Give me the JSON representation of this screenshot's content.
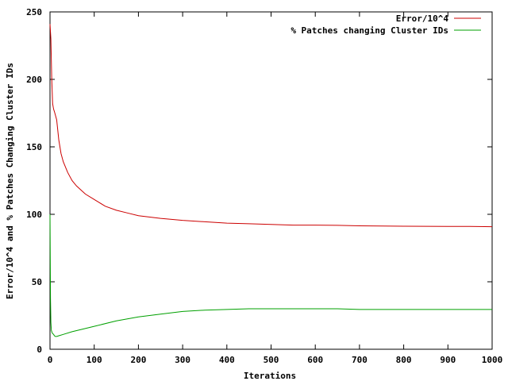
{
  "chart_data": {
    "type": "line",
    "title": "",
    "xlabel": "Iterations",
    "ylabel": "Error/10^4 and % Patches Changing Cluster IDs",
    "xlim": [
      0,
      1000
    ],
    "ylim": [
      0,
      250
    ],
    "x_ticks": [
      0,
      100,
      200,
      300,
      400,
      500,
      600,
      700,
      800,
      900,
      1000
    ],
    "y_ticks": [
      0,
      50,
      100,
      150,
      200,
      250
    ],
    "grid": false,
    "legend_position": "top-right",
    "series": [
      {
        "name": "Error/10^4",
        "color": "#cc0000",
        "x": [
          0,
          2,
          4,
          6,
          8,
          10,
          15,
          20,
          25,
          30,
          40,
          50,
          60,
          80,
          100,
          125,
          150,
          175,
          200,
          250,
          300,
          350,
          400,
          450,
          500,
          550,
          600,
          650,
          700,
          750,
          800,
          850,
          900,
          950,
          1000
        ],
        "y": [
          241,
          230,
          200,
          182,
          178,
          176,
          170,
          155,
          145,
          139,
          131,
          125,
          121,
          115,
          111,
          106,
          103,
          101,
          99,
          97,
          95.5,
          94.5,
          93.5,
          93,
          92.5,
          92,
          92,
          91.8,
          91.5,
          91.3,
          91.2,
          91.1,
          91,
          91,
          90.8
        ]
      },
      {
        "name": "% Patches changing Cluster IDs",
        "color": "#00a000",
        "x": [
          0,
          1,
          2,
          3,
          5,
          8,
          10,
          12,
          15,
          20,
          30,
          50,
          75,
          100,
          150,
          200,
          250,
          300,
          350,
          400,
          450,
          500,
          550,
          600,
          650,
          700,
          750,
          800,
          850,
          900,
          950,
          1000
        ],
        "y": [
          100,
          38,
          20,
          14,
          12,
          11,
          10,
          9.5,
          9.5,
          10,
          11,
          13,
          15,
          17,
          21,
          24,
          26,
          28,
          29,
          29.5,
          30,
          30,
          30,
          30,
          30,
          29.5,
          29.5,
          29.5,
          29.5,
          29.5,
          29.5,
          29.5
        ]
      }
    ]
  }
}
